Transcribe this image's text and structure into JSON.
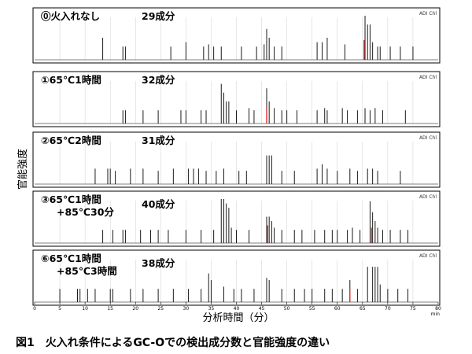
{
  "caption": "図1　火入れ条件によるGC-Oでの検出成分数と官能強度の違い",
  "chart_data": {
    "type": "bar",
    "xlabel": "分析時間（分）",
    "ylabel": "官能強度",
    "x_unit": "min",
    "xlim": [
      0,
      80
    ],
    "xticks": [
      "0",
      "5",
      "10",
      "15",
      "20",
      "25",
      "30",
      "35",
      "40",
      "45",
      "50",
      "55",
      "60",
      "65",
      "70",
      "75",
      "80"
    ],
    "channel_label": "ADI Chl",
    "grid": true,
    "panels": [
      {
        "condition_lines": [
          "⓪火入れなし"
        ],
        "count_label": "29成分",
        "peaks": [
          {
            "t": 13.5,
            "h": 0.5
          },
          {
            "t": 17.5,
            "h": 0.3
          },
          {
            "t": 18.0,
            "h": 0.3
          },
          {
            "t": 27.0,
            "h": 0.3
          },
          {
            "t": 30.0,
            "h": 0.4
          },
          {
            "t": 33.5,
            "h": 0.3
          },
          {
            "t": 34.5,
            "h": 0.35
          },
          {
            "t": 35.5,
            "h": 0.3
          },
          {
            "t": 37.0,
            "h": 0.3
          },
          {
            "t": 44.0,
            "h": 0.3
          },
          {
            "t": 45.5,
            "h": 0.35
          },
          {
            "t": 46.0,
            "h": 0.7
          },
          {
            "t": 46.5,
            "h": 0.5
          },
          {
            "t": 49.0,
            "h": 0.3
          },
          {
            "t": 56.0,
            "h": 0.4
          },
          {
            "t": 57.0,
            "h": 0.4
          },
          {
            "t": 58.0,
            "h": 0.5
          },
          {
            "t": 61.5,
            "h": 0.35
          },
          {
            "t": 65.5,
            "h": 1.0
          },
          {
            "t": 66.0,
            "h": 0.8
          },
          {
            "t": 66.5,
            "h": 0.8
          },
          {
            "t": 67.0,
            "h": 0.4
          },
          {
            "t": 68.0,
            "h": 0.3
          },
          {
            "t": 68.5,
            "h": 0.3
          },
          {
            "t": 70.5,
            "h": 0.3
          },
          {
            "t": 72.5,
            "h": 0.3
          },
          {
            "t": 75.0,
            "h": 0.3
          },
          {
            "t": 47.5,
            "h": 0.3
          },
          {
            "t": 41.0,
            "h": 0.3
          }
        ],
        "highlight": [
          {
            "t": 65.3,
            "h": 0.45
          }
        ]
      },
      {
        "condition_lines": [
          "①65℃1時間"
        ],
        "count_label": "32成分",
        "peaks": [
          {
            "t": 17.5,
            "h": 0.3
          },
          {
            "t": 18.0,
            "h": 0.3
          },
          {
            "t": 21.5,
            "h": 0.3
          },
          {
            "t": 24.5,
            "h": 0.3
          },
          {
            "t": 29.0,
            "h": 0.3
          },
          {
            "t": 30.0,
            "h": 0.3
          },
          {
            "t": 33.0,
            "h": 0.3
          },
          {
            "t": 34.0,
            "h": 0.3
          },
          {
            "t": 37.0,
            "h": 0.9
          },
          {
            "t": 37.5,
            "h": 0.7
          },
          {
            "t": 38.0,
            "h": 0.5
          },
          {
            "t": 38.5,
            "h": 0.5
          },
          {
            "t": 40.0,
            "h": 0.3
          },
          {
            "t": 42.5,
            "h": 0.35
          },
          {
            "t": 43.5,
            "h": 0.3
          },
          {
            "t": 46.0,
            "h": 0.8
          },
          {
            "t": 46.5,
            "h": 0.5
          },
          {
            "t": 47.5,
            "h": 0.35
          },
          {
            "t": 49.0,
            "h": 0.3
          },
          {
            "t": 50.0,
            "h": 0.3
          },
          {
            "t": 52.0,
            "h": 0.3
          },
          {
            "t": 56.0,
            "h": 0.3
          },
          {
            "t": 57.5,
            "h": 0.35
          },
          {
            "t": 58.0,
            "h": 0.3
          },
          {
            "t": 61.0,
            "h": 0.35
          },
          {
            "t": 62.0,
            "h": 0.3
          },
          {
            "t": 64.0,
            "h": 0.3
          },
          {
            "t": 65.5,
            "h": 0.35
          },
          {
            "t": 66.5,
            "h": 0.3
          },
          {
            "t": 67.5,
            "h": 0.35
          },
          {
            "t": 69.0,
            "h": 0.3
          },
          {
            "t": 73.5,
            "h": 0.3
          }
        ],
        "highlight": [
          {
            "t": 46.0,
            "h": 0.35
          }
        ]
      },
      {
        "condition_lines": [
          "②65℃2時間"
        ],
        "count_label": "31成分",
        "peaks": [
          {
            "t": 12.0,
            "h": 0.35
          },
          {
            "t": 14.5,
            "h": 0.35
          },
          {
            "t": 15.0,
            "h": 0.35
          },
          {
            "t": 16.0,
            "h": 0.3
          },
          {
            "t": 19.0,
            "h": 0.35
          },
          {
            "t": 21.5,
            "h": 0.35
          },
          {
            "t": 24.5,
            "h": 0.3
          },
          {
            "t": 27.5,
            "h": 0.35
          },
          {
            "t": 30.5,
            "h": 0.35
          },
          {
            "t": 31.5,
            "h": 0.35
          },
          {
            "t": 32.5,
            "h": 0.35
          },
          {
            "t": 34.0,
            "h": 0.3
          },
          {
            "t": 36.0,
            "h": 0.3
          },
          {
            "t": 37.5,
            "h": 0.35
          },
          {
            "t": 40.5,
            "h": 0.3
          },
          {
            "t": 42.0,
            "h": 0.3
          },
          {
            "t": 46.0,
            "h": 0.65
          },
          {
            "t": 46.5,
            "h": 0.65
          },
          {
            "t": 47.0,
            "h": 0.65
          },
          {
            "t": 49.0,
            "h": 0.3
          },
          {
            "t": 51.5,
            "h": 0.3
          },
          {
            "t": 56.0,
            "h": 0.35
          },
          {
            "t": 57.0,
            "h": 0.45
          },
          {
            "t": 58.0,
            "h": 0.35
          },
          {
            "t": 60.0,
            "h": 0.3
          },
          {
            "t": 62.5,
            "h": 0.35
          },
          {
            "t": 64.0,
            "h": 0.3
          },
          {
            "t": 66.0,
            "h": 0.35
          },
          {
            "t": 67.0,
            "h": 0.35
          },
          {
            "t": 68.0,
            "h": 0.3
          },
          {
            "t": 72.5,
            "h": 0.3
          }
        ],
        "highlight": []
      },
      {
        "condition_lines": [
          "③65℃1時間",
          "+85℃30分"
        ],
        "count_label": "40成分",
        "peaks": [
          {
            "t": 13.5,
            "h": 0.3
          },
          {
            "t": 15.5,
            "h": 0.3
          },
          {
            "t": 17.5,
            "h": 0.3
          },
          {
            "t": 18.0,
            "h": 0.3
          },
          {
            "t": 21.0,
            "h": 0.3
          },
          {
            "t": 24.5,
            "h": 0.3
          },
          {
            "t": 26.5,
            "h": 0.3
          },
          {
            "t": 30.0,
            "h": 0.3
          },
          {
            "t": 33.0,
            "h": 0.3
          },
          {
            "t": 35.5,
            "h": 0.3
          },
          {
            "t": 37.0,
            "h": 1.0
          },
          {
            "t": 37.5,
            "h": 1.0
          },
          {
            "t": 38.0,
            "h": 0.9
          },
          {
            "t": 38.5,
            "h": 0.8
          },
          {
            "t": 39.0,
            "h": 0.35
          },
          {
            "t": 40.0,
            "h": 0.3
          },
          {
            "t": 42.5,
            "h": 0.3
          },
          {
            "t": 46.0,
            "h": 0.6
          },
          {
            "t": 46.5,
            "h": 0.6
          },
          {
            "t": 47.0,
            "h": 0.5
          },
          {
            "t": 47.5,
            "h": 0.35
          },
          {
            "t": 49.0,
            "h": 0.3
          },
          {
            "t": 51.5,
            "h": 0.3
          },
          {
            "t": 53.0,
            "h": 0.3
          },
          {
            "t": 55.5,
            "h": 0.3
          },
          {
            "t": 57.5,
            "h": 0.3
          },
          {
            "t": 59.0,
            "h": 0.3
          },
          {
            "t": 60.0,
            "h": 0.3
          },
          {
            "t": 62.0,
            "h": 0.3
          },
          {
            "t": 63.0,
            "h": 0.35
          },
          {
            "t": 64.5,
            "h": 0.3
          },
          {
            "t": 66.5,
            "h": 0.95
          },
          {
            "t": 67.0,
            "h": 0.7
          },
          {
            "t": 67.5,
            "h": 0.5
          },
          {
            "t": 68.0,
            "h": 0.35
          },
          {
            "t": 69.0,
            "h": 0.3
          },
          {
            "t": 70.5,
            "h": 0.3
          },
          {
            "t": 72.5,
            "h": 0.3
          },
          {
            "t": 74.0,
            "h": 0.3
          },
          {
            "t": 23.0,
            "h": 0.3
          }
        ],
        "highlight": [
          {
            "t": 46.2,
            "h": 0.4
          },
          {
            "t": 66.8,
            "h": 0.35
          }
        ]
      },
      {
        "condition_lines": [
          "⑥65℃1時間",
          "+85℃3時間"
        ],
        "count_label": "38成分",
        "peaks": [
          {
            "t": 5.0,
            "h": 0.3
          },
          {
            "t": 8.5,
            "h": 0.3
          },
          {
            "t": 9.0,
            "h": 0.3
          },
          {
            "t": 10.5,
            "h": 0.3
          },
          {
            "t": 12.0,
            "h": 0.3
          },
          {
            "t": 15.0,
            "h": 0.3
          },
          {
            "t": 15.5,
            "h": 0.3
          },
          {
            "t": 19.0,
            "h": 0.3
          },
          {
            "t": 21.5,
            "h": 0.3
          },
          {
            "t": 24.5,
            "h": 0.3
          },
          {
            "t": 27.5,
            "h": 0.3
          },
          {
            "t": 30.5,
            "h": 0.3
          },
          {
            "t": 33.0,
            "h": 0.3
          },
          {
            "t": 34.5,
            "h": 0.65
          },
          {
            "t": 35.0,
            "h": 0.5
          },
          {
            "t": 37.5,
            "h": 0.35
          },
          {
            "t": 39.5,
            "h": 0.3
          },
          {
            "t": 41.0,
            "h": 0.3
          },
          {
            "t": 43.5,
            "h": 0.3
          },
          {
            "t": 46.0,
            "h": 0.55
          },
          {
            "t": 46.5,
            "h": 0.5
          },
          {
            "t": 49.0,
            "h": 0.3
          },
          {
            "t": 51.5,
            "h": 0.3
          },
          {
            "t": 53.5,
            "h": 0.3
          },
          {
            "t": 55.0,
            "h": 0.3
          },
          {
            "t": 57.5,
            "h": 0.3
          },
          {
            "t": 59.0,
            "h": 0.3
          },
          {
            "t": 61.0,
            "h": 0.3
          },
          {
            "t": 62.5,
            "h": 0.5
          },
          {
            "t": 64.0,
            "h": 0.3
          },
          {
            "t": 66.0,
            "h": 0.8
          },
          {
            "t": 67.0,
            "h": 0.8
          },
          {
            "t": 67.5,
            "h": 0.8
          },
          {
            "t": 68.0,
            "h": 0.8
          },
          {
            "t": 68.5,
            "h": 0.4
          },
          {
            "t": 70.0,
            "h": 0.3
          },
          {
            "t": 72.0,
            "h": 0.3
          },
          {
            "t": 74.0,
            "h": 0.3
          }
        ],
        "highlight": [
          {
            "t": 62.5,
            "h": 0.3
          }
        ]
      }
    ]
  }
}
